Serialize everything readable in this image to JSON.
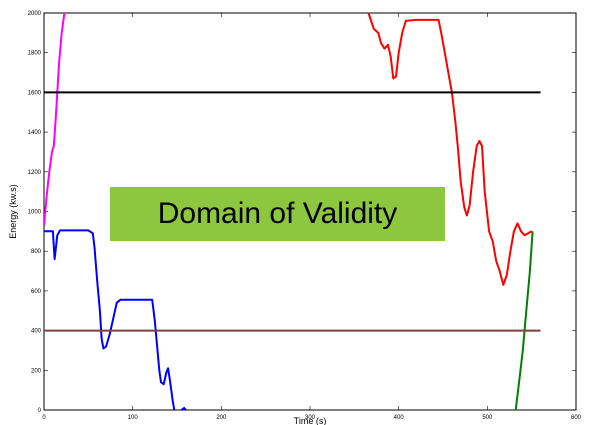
{
  "chart_data": {
    "type": "line",
    "title": "",
    "xlabel": "Time (s)",
    "ylabel": "Energy (kw.s)",
    "xlim": [
      0,
      600
    ],
    "ylim": [
      0,
      2000
    ],
    "x_ticks": [
      0,
      100,
      200,
      300,
      400,
      500,
      600
    ],
    "y_ticks": [
      0,
      200,
      400,
      600,
      800,
      1000,
      1200,
      1400,
      1600,
      1800,
      2000
    ],
    "grid": false,
    "legend": "none",
    "annotation": {
      "text": "Domain of Validity",
      "background": "#8dc63f"
    },
    "series": [
      {
        "color": "#ff00ff",
        "points": [
          [
            0,
            930
          ],
          [
            3,
            1080
          ],
          [
            6,
            1200
          ],
          [
            9,
            1300
          ],
          [
            11,
            1330
          ],
          [
            13,
            1450
          ],
          [
            15,
            1600
          ],
          [
            17,
            1750
          ],
          [
            20,
            1900
          ],
          [
            23,
            2000
          ]
        ]
      },
      {
        "color": "#0000ff",
        "points": [
          [
            0,
            900
          ],
          [
            10,
            900
          ],
          [
            12,
            760
          ],
          [
            15,
            880
          ],
          [
            18,
            905
          ],
          [
            30,
            905
          ],
          [
            50,
            905
          ],
          [
            55,
            890
          ],
          [
            57,
            820
          ],
          [
            60,
            650
          ],
          [
            63,
            500
          ],
          [
            65,
            360
          ],
          [
            67,
            310
          ],
          [
            70,
            320
          ],
          [
            74,
            380
          ],
          [
            78,
            460
          ],
          [
            82,
            540
          ],
          [
            86,
            555
          ],
          [
            100,
            555
          ],
          [
            122,
            555
          ],
          [
            125,
            450
          ],
          [
            128,
            300
          ],
          [
            130,
            200
          ],
          [
            132,
            140
          ],
          [
            135,
            130
          ],
          [
            138,
            190
          ],
          [
            140,
            210
          ],
          [
            142,
            150
          ],
          [
            145,
            50
          ],
          [
            147,
            0
          ]
        ],
        "segments": [
          [
            [
              155,
              0
            ],
            [
              158,
              10
            ],
            [
              160,
              0
            ]
          ]
        ]
      },
      {
        "color": "#ff0000",
        "points": [
          [
            366,
            2000
          ],
          [
            372,
            1920
          ],
          [
            377,
            1900
          ],
          [
            380,
            1850
          ],
          [
            384,
            1820
          ],
          [
            388,
            1840
          ],
          [
            391,
            1780
          ],
          [
            394,
            1670
          ],
          [
            397,
            1680
          ],
          [
            400,
            1800
          ],
          [
            404,
            1900
          ],
          [
            408,
            1960
          ],
          [
            420,
            1965
          ],
          [
            445,
            1965
          ],
          [
            448,
            1900
          ],
          [
            452,
            1800
          ],
          [
            456,
            1700
          ],
          [
            460,
            1600
          ],
          [
            464,
            1450
          ],
          [
            467,
            1310
          ],
          [
            470,
            1150
          ],
          [
            474,
            1020
          ],
          [
            477,
            980
          ],
          [
            480,
            1030
          ],
          [
            484,
            1200
          ],
          [
            488,
            1330
          ],
          [
            491,
            1355
          ],
          [
            494,
            1330
          ],
          [
            497,
            1100
          ],
          [
            502,
            900
          ],
          [
            506,
            850
          ],
          [
            510,
            750
          ],
          [
            514,
            700
          ],
          [
            518,
            630
          ],
          [
            522,
            680
          ],
          [
            526,
            800
          ],
          [
            530,
            900
          ],
          [
            534,
            940
          ],
          [
            538,
            900
          ],
          [
            542,
            880
          ],
          [
            546,
            890
          ],
          [
            550,
            900
          ]
        ]
      },
      {
        "color": "#007f00",
        "points": [
          [
            532,
            0
          ],
          [
            536,
            150
          ],
          [
            540,
            300
          ],
          [
            544,
            500
          ],
          [
            548,
            700
          ],
          [
            551,
            900
          ]
        ]
      },
      {
        "color": "#000000",
        "points": [
          [
            0,
            1600
          ],
          [
            560,
            1600
          ]
        ]
      },
      {
        "color": "#7f3f3f",
        "points": [
          [
            0,
            400
          ],
          [
            560,
            400
          ]
        ]
      }
    ]
  }
}
